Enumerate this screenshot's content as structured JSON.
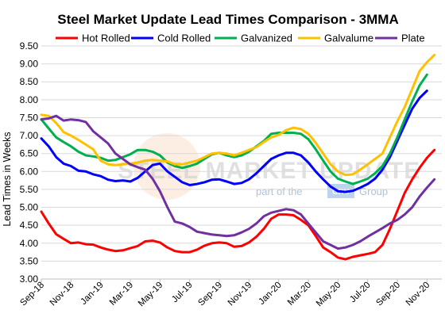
{
  "chart_data": {
    "type": "line",
    "title": "Steel Market Update Lead Times Comparison - 3MMA",
    "ylabel": "Lead Times in Weeks",
    "xlabel": "",
    "ylim": [
      3.0,
      9.5
    ],
    "yticks": [
      "3.00",
      "3.50",
      "4.00",
      "4.50",
      "5.00",
      "5.50",
      "6.00",
      "6.50",
      "7.00",
      "7.50",
      "8.00",
      "8.50",
      "9.00",
      "9.50"
    ],
    "xtick_labels": [
      "Sep-18",
      "Nov-18",
      "Jan-19",
      "Mar-19",
      "May-19",
      "Jul-19",
      "Sep-19",
      "Nov-19",
      "Jan-20",
      "Mar-20",
      "May-20",
      "Jul-20",
      "Sep-20",
      "Nov-20"
    ],
    "x_start": "Sep-18",
    "x_end": "Dec-20",
    "legend_position": "top",
    "grid": "horizontal",
    "watermark": {
      "main": "STEEL MARKET UPDATE",
      "sub": "part of the",
      "box": "CRU",
      "tail": "Group"
    },
    "series": [
      {
        "name": "Hot Rolled",
        "color": "#ff0000",
        "points": [
          [
            0,
            4.88
          ],
          [
            0.5,
            4.55
          ],
          [
            1,
            4.25
          ],
          [
            1.5,
            4.12
          ],
          [
            2,
            4.0
          ],
          [
            2.5,
            4.02
          ],
          [
            3,
            3.97
          ],
          [
            3.5,
            3.96
          ],
          [
            4,
            3.88
          ],
          [
            4.5,
            3.82
          ],
          [
            5,
            3.78
          ],
          [
            5.5,
            3.8
          ],
          [
            6,
            3.86
          ],
          [
            6.5,
            3.92
          ],
          [
            7,
            4.05
          ],
          [
            7.5,
            4.07
          ],
          [
            8,
            4.02
          ],
          [
            8.5,
            3.88
          ],
          [
            9,
            3.78
          ],
          [
            9.5,
            3.75
          ],
          [
            10,
            3.75
          ],
          [
            10.5,
            3.82
          ],
          [
            11,
            3.93
          ],
          [
            11.5,
            4.0
          ],
          [
            12,
            4.02
          ],
          [
            12.5,
            4.0
          ],
          [
            13,
            3.9
          ],
          [
            13.5,
            3.92
          ],
          [
            14,
            4.02
          ],
          [
            14.5,
            4.18
          ],
          [
            15,
            4.4
          ],
          [
            15.5,
            4.68
          ],
          [
            16,
            4.8
          ],
          [
            16.5,
            4.8
          ],
          [
            17,
            4.78
          ],
          [
            17.5,
            4.65
          ],
          [
            18,
            4.5
          ],
          [
            18.5,
            4.2
          ],
          [
            19,
            3.88
          ],
          [
            19.5,
            3.75
          ],
          [
            20,
            3.6
          ],
          [
            20.5,
            3.55
          ],
          [
            21,
            3.62
          ],
          [
            21.5,
            3.66
          ],
          [
            22,
            3.7
          ],
          [
            22.5,
            3.75
          ],
          [
            23,
            3.95
          ],
          [
            23.5,
            4.4
          ],
          [
            24,
            4.9
          ],
          [
            24.5,
            5.4
          ],
          [
            25,
            5.78
          ],
          [
            25.5,
            6.1
          ],
          [
            26,
            6.38
          ],
          [
            26.5,
            6.6
          ]
        ]
      },
      {
        "name": "Cold Rolled",
        "color": "#0000ff",
        "points": [
          [
            0,
            6.92
          ],
          [
            0.5,
            6.7
          ],
          [
            1,
            6.4
          ],
          [
            1.5,
            6.22
          ],
          [
            2,
            6.15
          ],
          [
            2.5,
            6.02
          ],
          [
            3,
            6.0
          ],
          [
            3.5,
            5.92
          ],
          [
            4,
            5.87
          ],
          [
            4.5,
            5.77
          ],
          [
            5,
            5.73
          ],
          [
            5.5,
            5.75
          ],
          [
            6,
            5.72
          ],
          [
            6.5,
            5.82
          ],
          [
            7,
            6.0
          ],
          [
            7.5,
            6.18
          ],
          [
            8,
            6.22
          ],
          [
            8.5,
            6.0
          ],
          [
            9,
            5.85
          ],
          [
            9.5,
            5.7
          ],
          [
            10,
            5.62
          ],
          [
            10.5,
            5.65
          ],
          [
            11,
            5.7
          ],
          [
            11.5,
            5.77
          ],
          [
            12,
            5.78
          ],
          [
            12.5,
            5.72
          ],
          [
            13,
            5.65
          ],
          [
            13.5,
            5.68
          ],
          [
            14,
            5.78
          ],
          [
            14.5,
            5.95
          ],
          [
            15,
            6.15
          ],
          [
            15.5,
            6.35
          ],
          [
            16,
            6.45
          ],
          [
            16.5,
            6.52
          ],
          [
            17,
            6.52
          ],
          [
            17.5,
            6.45
          ],
          [
            18,
            6.25
          ],
          [
            18.5,
            6.0
          ],
          [
            19,
            5.78
          ],
          [
            19.5,
            5.58
          ],
          [
            20,
            5.45
          ],
          [
            20.5,
            5.43
          ],
          [
            21,
            5.46
          ],
          [
            21.5,
            5.55
          ],
          [
            22,
            5.65
          ],
          [
            22.5,
            5.8
          ],
          [
            23,
            6.05
          ],
          [
            23.5,
            6.4
          ],
          [
            24,
            6.85
          ],
          [
            24.5,
            7.3
          ],
          [
            25,
            7.75
          ],
          [
            25.5,
            8.05
          ],
          [
            26,
            8.25
          ]
        ]
      },
      {
        "name": "Galvanized",
        "color": "#00b050",
        "points": [
          [
            0,
            7.45
          ],
          [
            0.5,
            7.2
          ],
          [
            1,
            6.95
          ],
          [
            1.5,
            6.82
          ],
          [
            2,
            6.7
          ],
          [
            2.5,
            6.55
          ],
          [
            3,
            6.45
          ],
          [
            3.5,
            6.42
          ],
          [
            4,
            6.38
          ],
          [
            4.5,
            6.3
          ],
          [
            5,
            6.32
          ],
          [
            5.5,
            6.4
          ],
          [
            6,
            6.48
          ],
          [
            6.5,
            6.6
          ],
          [
            7,
            6.6
          ],
          [
            7.5,
            6.55
          ],
          [
            8,
            6.45
          ],
          [
            8.5,
            6.25
          ],
          [
            9,
            6.15
          ],
          [
            9.5,
            6.1
          ],
          [
            10,
            6.15
          ],
          [
            10.5,
            6.22
          ],
          [
            11,
            6.35
          ],
          [
            11.5,
            6.48
          ],
          [
            12,
            6.52
          ],
          [
            12.5,
            6.45
          ],
          [
            13,
            6.4
          ],
          [
            13.5,
            6.45
          ],
          [
            14,
            6.55
          ],
          [
            14.5,
            6.7
          ],
          [
            15,
            6.85
          ],
          [
            15.5,
            7.05
          ],
          [
            16,
            7.08
          ],
          [
            16.5,
            7.08
          ],
          [
            17,
            7.08
          ],
          [
            17.5,
            7.05
          ],
          [
            18,
            6.9
          ],
          [
            18.5,
            6.62
          ],
          [
            19,
            6.3
          ],
          [
            19.5,
            6.0
          ],
          [
            20,
            5.8
          ],
          [
            20.5,
            5.72
          ],
          [
            21,
            5.65
          ],
          [
            21.5,
            5.72
          ],
          [
            22,
            5.8
          ],
          [
            22.5,
            5.95
          ],
          [
            23,
            6.15
          ],
          [
            23.5,
            6.5
          ],
          [
            24,
            6.95
          ],
          [
            24.5,
            7.45
          ],
          [
            25,
            7.95
          ],
          [
            25.5,
            8.4
          ],
          [
            26,
            8.7
          ]
        ]
      },
      {
        "name": "Galvalume",
        "color": "#ffc000",
        "points": [
          [
            0,
            7.58
          ],
          [
            0.5,
            7.55
          ],
          [
            1,
            7.35
          ],
          [
            1.5,
            7.1
          ],
          [
            2,
            7.0
          ],
          [
            2.5,
            6.88
          ],
          [
            3,
            6.75
          ],
          [
            3.5,
            6.62
          ],
          [
            4,
            6.3
          ],
          [
            4.5,
            6.2
          ],
          [
            5,
            6.18
          ],
          [
            5.5,
            6.2
          ],
          [
            6,
            6.22
          ],
          [
            6.5,
            6.25
          ],
          [
            7,
            6.3
          ],
          [
            7.5,
            6.32
          ],
          [
            8,
            6.3
          ],
          [
            8.5,
            6.28
          ],
          [
            9,
            6.2
          ],
          [
            9.5,
            6.2
          ],
          [
            10,
            6.25
          ],
          [
            10.5,
            6.3
          ],
          [
            11,
            6.4
          ],
          [
            11.5,
            6.5
          ],
          [
            12,
            6.52
          ],
          [
            12.5,
            6.5
          ],
          [
            13,
            6.45
          ],
          [
            13.5,
            6.52
          ],
          [
            14,
            6.6
          ],
          [
            14.5,
            6.68
          ],
          [
            15,
            6.82
          ],
          [
            15.5,
            6.95
          ],
          [
            16,
            7.02
          ],
          [
            16.5,
            7.15
          ],
          [
            17,
            7.22
          ],
          [
            17.5,
            7.18
          ],
          [
            18,
            7.05
          ],
          [
            18.5,
            6.8
          ],
          [
            19,
            6.5
          ],
          [
            19.5,
            6.2
          ],
          [
            20,
            6.0
          ],
          [
            20.5,
            5.9
          ],
          [
            21,
            5.92
          ],
          [
            21.5,
            6.05
          ],
          [
            22,
            6.2
          ],
          [
            22.5,
            6.35
          ],
          [
            23,
            6.5
          ],
          [
            23.5,
            6.95
          ],
          [
            24,
            7.4
          ],
          [
            24.5,
            7.8
          ],
          [
            25,
            8.3
          ],
          [
            25.5,
            8.8
          ],
          [
            26,
            9.05
          ],
          [
            26.5,
            9.25
          ]
        ]
      },
      {
        "name": "Plate",
        "color": "#7030a0",
        "points": [
          [
            0,
            7.45
          ],
          [
            0.5,
            7.48
          ],
          [
            1,
            7.55
          ],
          [
            1.5,
            7.42
          ],
          [
            2,
            7.45
          ],
          [
            2.5,
            7.43
          ],
          [
            3,
            7.38
          ],
          [
            3.5,
            7.12
          ],
          [
            4,
            6.95
          ],
          [
            4.5,
            6.78
          ],
          [
            5,
            6.5
          ],
          [
            5.5,
            6.35
          ],
          [
            6,
            6.2
          ],
          [
            6.5,
            6.12
          ],
          [
            7,
            6.05
          ],
          [
            7.5,
            5.8
          ],
          [
            8,
            5.45
          ],
          [
            8.5,
            5.0
          ],
          [
            9,
            4.6
          ],
          [
            9.5,
            4.55
          ],
          [
            10,
            4.45
          ],
          [
            10.5,
            4.32
          ],
          [
            11,
            4.28
          ],
          [
            11.5,
            4.24
          ],
          [
            12,
            4.22
          ],
          [
            12.5,
            4.2
          ],
          [
            13,
            4.22
          ],
          [
            13.5,
            4.3
          ],
          [
            14,
            4.4
          ],
          [
            14.5,
            4.55
          ],
          [
            15,
            4.75
          ],
          [
            15.5,
            4.85
          ],
          [
            16,
            4.9
          ],
          [
            16.5,
            4.95
          ],
          [
            17,
            4.92
          ],
          [
            17.5,
            4.8
          ],
          [
            18,
            4.55
          ],
          [
            18.5,
            4.3
          ],
          [
            19,
            4.05
          ],
          [
            19.5,
            3.95
          ],
          [
            20,
            3.85
          ],
          [
            20.5,
            3.88
          ],
          [
            21,
            3.95
          ],
          [
            21.5,
            4.05
          ],
          [
            22,
            4.18
          ],
          [
            22.5,
            4.3
          ],
          [
            23,
            4.42
          ],
          [
            23.5,
            4.55
          ],
          [
            24,
            4.65
          ],
          [
            24.5,
            4.8
          ],
          [
            25,
            5.0
          ],
          [
            25.5,
            5.3
          ],
          [
            26,
            5.55
          ],
          [
            26.5,
            5.78
          ]
        ]
      }
    ]
  }
}
